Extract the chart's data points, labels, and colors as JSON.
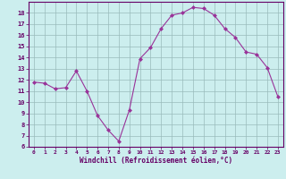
{
  "x": [
    0,
    1,
    2,
    3,
    4,
    5,
    6,
    7,
    8,
    9,
    10,
    11,
    12,
    13,
    14,
    15,
    16,
    17,
    18,
    19,
    20,
    21,
    22,
    23
  ],
  "y": [
    11.8,
    11.7,
    11.2,
    11.3,
    12.8,
    11.0,
    8.8,
    7.5,
    6.5,
    9.3,
    13.9,
    14.9,
    16.6,
    17.8,
    18.0,
    18.5,
    18.4,
    17.8,
    16.6,
    15.8,
    14.5,
    14.3,
    13.1,
    10.5
  ],
  "line_color": "#993399",
  "marker_color": "#993399",
  "bg_color": "#cceeee",
  "grid_color": "#99bbbb",
  "axis_color": "#660066",
  "tick_color": "#660066",
  "xlabel": "Windchill (Refroidissement éolien,°C)",
  "ylim": [
    6,
    19
  ],
  "xlim": [
    -0.5,
    23.5
  ],
  "yticks": [
    6,
    7,
    8,
    9,
    10,
    11,
    12,
    13,
    14,
    15,
    16,
    17,
    18
  ],
  "xticks": [
    0,
    1,
    2,
    3,
    4,
    5,
    6,
    7,
    8,
    9,
    10,
    11,
    12,
    13,
    14,
    15,
    16,
    17,
    18,
    19,
    20,
    21,
    22,
    23
  ]
}
